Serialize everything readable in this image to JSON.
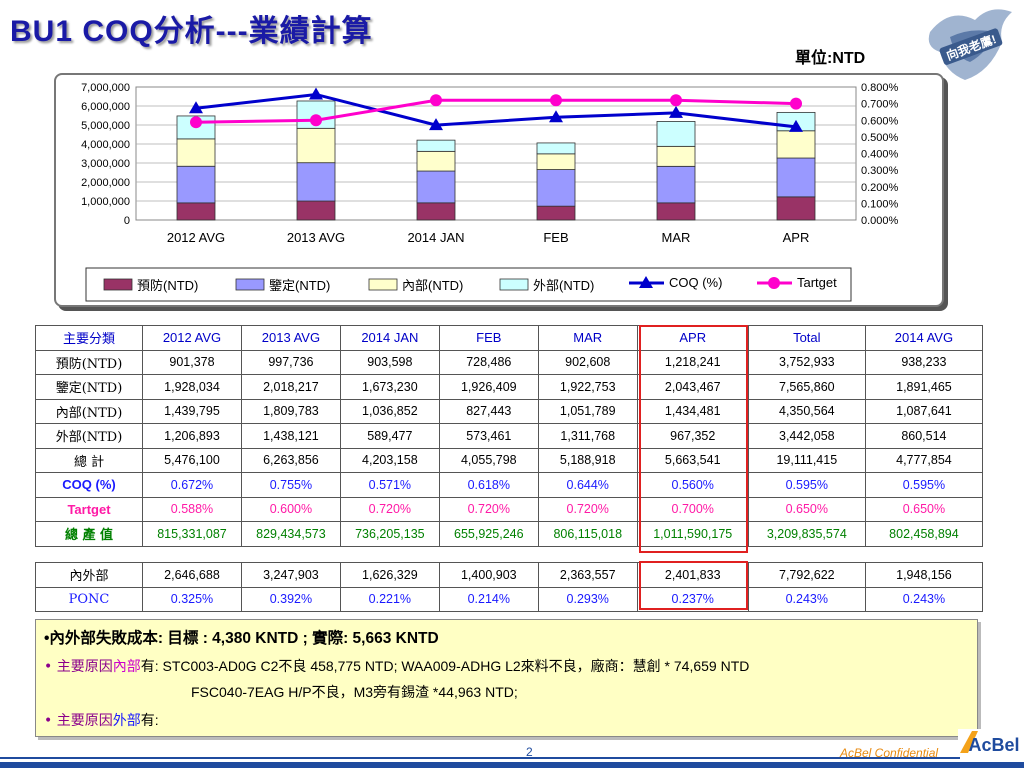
{
  "header": {
    "title": "BU1  COQ分析---業績計算",
    "unit": "單位:NTD",
    "logo_text": "向我老鷹!"
  },
  "chart_data": {
    "type": "bar",
    "stacked": true,
    "categories": [
      "2012 AVG",
      "2013 AVG",
      "2014 JAN",
      "FEB",
      "MAR",
      "APR"
    ],
    "series": [
      {
        "name": "預防(NTD)",
        "type": "bar",
        "color": "#993366",
        "values": [
          901378,
          997736,
          903598,
          728486,
          902608,
          1218241
        ]
      },
      {
        "name": "鑒定(NTD)",
        "type": "bar",
        "color": "#9999ff",
        "values": [
          1928034,
          2018217,
          1673230,
          1926409,
          1922753,
          2043467
        ]
      },
      {
        "name": "內部(NTD)",
        "type": "bar",
        "color": "#ffffcc",
        "values": [
          1439795,
          1809783,
          1036852,
          827443,
          1051789,
          1434481
        ]
      },
      {
        "name": "外部(NTD)",
        "type": "bar",
        "color": "#ccffff",
        "values": [
          1206893,
          1438121,
          589477,
          573461,
          1311768,
          967352
        ]
      },
      {
        "name": "COQ (%)",
        "type": "line",
        "axis": "right",
        "color": "#0000cc",
        "marker": "triangle",
        "values": [
          0.672,
          0.755,
          0.571,
          0.618,
          0.644,
          0.56
        ]
      },
      {
        "name": "Tartget",
        "type": "line",
        "axis": "right",
        "color": "#ff00cc",
        "marker": "circle",
        "values": [
          0.588,
          0.6,
          0.72,
          0.72,
          0.72,
          0.7
        ]
      }
    ],
    "yleft_ticks": [
      "7,000,000",
      "6,000,000",
      "5,000,000",
      "4,000,000",
      "3,000,000",
      "2,000,000",
      "1,000,000",
      "0"
    ],
    "yleft_lim": [
      0,
      7000000
    ],
    "yright_ticks": [
      "0.800%",
      "0.700%",
      "0.600%",
      "0.500%",
      "0.400%",
      "0.300%",
      "0.200%",
      "0.100%",
      "0.000%"
    ],
    "yright_lim": [
      0,
      0.8
    ],
    "legend_position": "bottom",
    "grid": true
  },
  "table": {
    "columns": [
      "主要分類",
      "2012 AVG",
      "2013 AVG",
      "2014 JAN",
      "FEB",
      "MAR",
      "APR",
      "Total",
      "2014 AVG"
    ],
    "rows": [
      {
        "label": "預防(NTD)",
        "values": [
          "901,378",
          "997,736",
          "903,598",
          "728,486",
          "902,608",
          "1,218,241",
          "3,752,933",
          "938,233"
        ]
      },
      {
        "label": "鑒定(NTD)",
        "values": [
          "1,928,034",
          "2,018,217",
          "1,673,230",
          "1,926,409",
          "1,922,753",
          "2,043,467",
          "7,565,860",
          "1,891,465"
        ]
      },
      {
        "label": "內部(NTD)",
        "values": [
          "1,439,795",
          "1,809,783",
          "1,036,852",
          "827,443",
          "1,051,789",
          "1,434,481",
          "4,350,564",
          "1,087,641"
        ]
      },
      {
        "label": "外部(NTD)",
        "values": [
          "1,206,893",
          "1,438,121",
          "589,477",
          "573,461",
          "1,311,768",
          "967,352",
          "3,442,058",
          "860,514"
        ]
      },
      {
        "label": "總 計",
        "values": [
          "5,476,100",
          "6,263,856",
          "4,203,158",
          "4,055,798",
          "5,188,918",
          "5,663,541",
          "19,111,415",
          "4,777,854"
        ]
      },
      {
        "label": "COQ (%)",
        "values": [
          "0.672%",
          "0.755%",
          "0.571%",
          "0.618%",
          "0.644%",
          "0.560%",
          "0.595%",
          "0.595%"
        ]
      },
      {
        "label": "Tartget",
        "values": [
          "0.588%",
          "0.600%",
          "0.720%",
          "0.720%",
          "0.720%",
          "0.700%",
          "0.650%",
          "0.650%"
        ]
      },
      {
        "label": "總 產 值",
        "values": [
          "815,331,087",
          "829,434,573",
          "736,205,135",
          "655,925,246",
          "806,115,018",
          "1,011,590,175",
          "3,209,835,574",
          "802,458,894"
        ]
      }
    ]
  },
  "table2": {
    "rows": [
      {
        "label": "內外部",
        "values": [
          "2,646,688",
          "3,247,903",
          "1,626,329",
          "1,400,903",
          "2,363,557",
          "2,401,833",
          "7,792,622",
          "1,948,156"
        ]
      },
      {
        "label": "PONC",
        "values": [
          "0.325%",
          "0.392%",
          "0.221%",
          "0.214%",
          "0.293%",
          "0.237%",
          "0.243%",
          "0.243%"
        ]
      }
    ]
  },
  "notes": {
    "line1": "•內外部失敗成本: 目標 :  4,380  KNTD  ; 實際: 5,663 KNTD",
    "line2_prefix": "• 主要原因",
    "line2_hl": "內部",
    "line2_rest": "有: STC003-AD0G  C2不良 458,775 NTD; WAA009-ADHG  L2來料不良，廠商：慧創 * 74,659 NTD",
    "line3": "FSC040-7EAG  H/P不良，M3旁有錫渣 *44,963 NTD;",
    "line4_prefix": "• 主要原因",
    "line4_hl": "外部",
    "line4_rest": "有:"
  },
  "footer": {
    "page": "2",
    "confidential": "AcBel Confidential",
    "brand": "AcBel"
  }
}
